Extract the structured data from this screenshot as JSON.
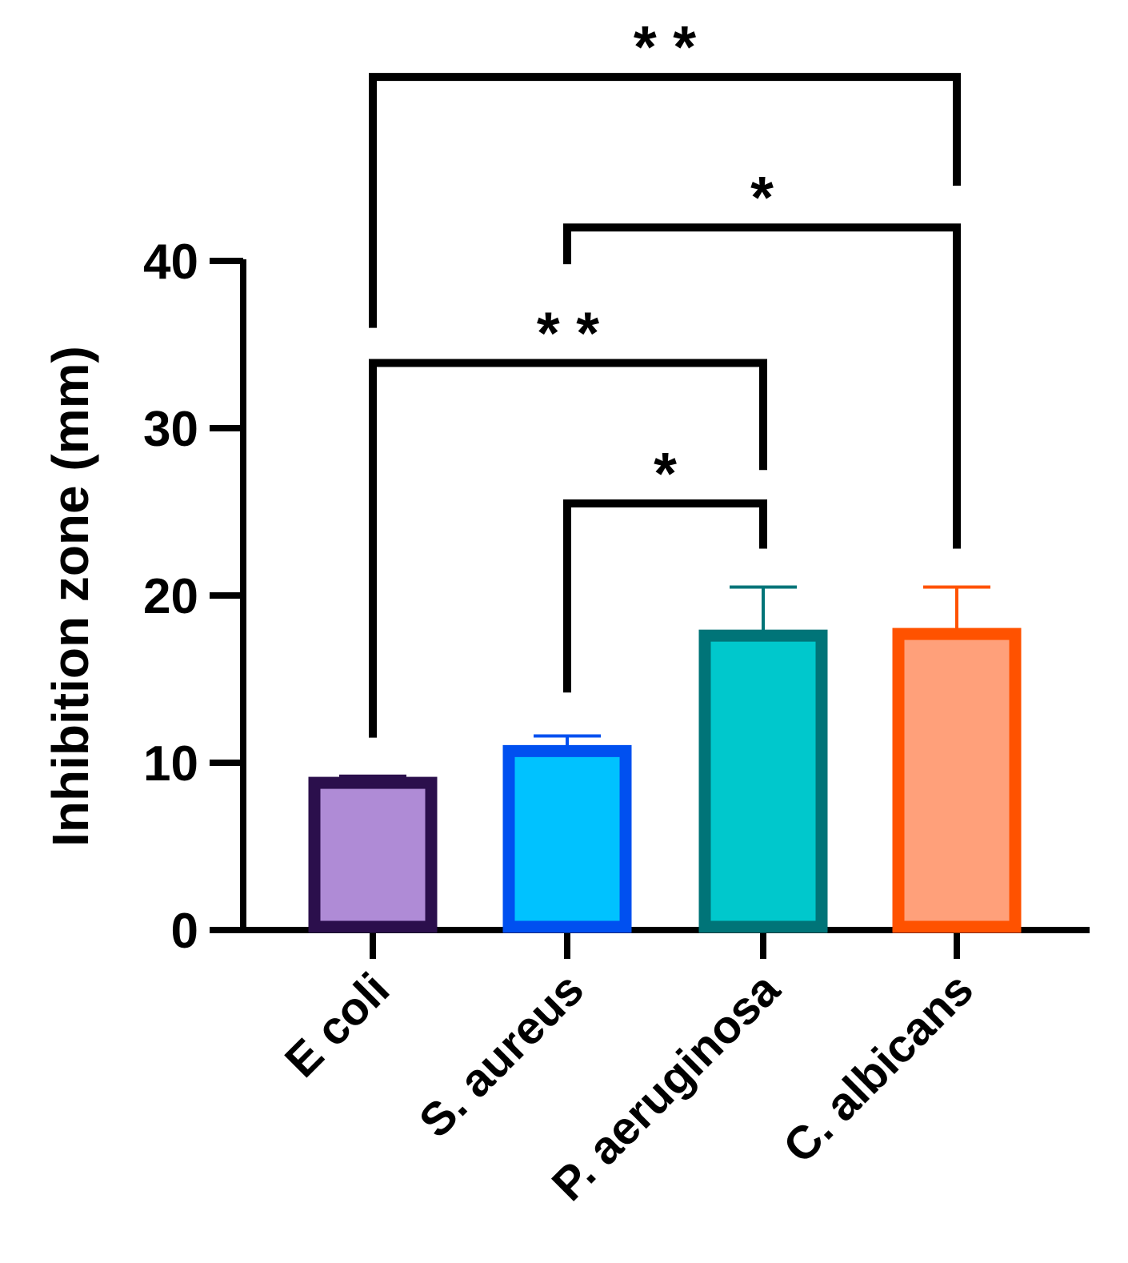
{
  "chart_data": {
    "type": "bar",
    "title": "",
    "xlabel": "",
    "ylabel": "Inhibition zone (mm)",
    "ylim": [
      0,
      40
    ],
    "yticks": [
      0,
      10,
      20,
      30,
      40
    ],
    "grid": false,
    "legend": "none",
    "categories": [
      "E coli",
      "S. aureus",
      "P. aeruginosa",
      "C. albicans"
    ],
    "values": [
      8.8,
      10.7,
      17.6,
      17.7
    ],
    "errors": [
      0.4,
      0.9,
      2.9,
      2.8
    ],
    "fill_colors": [
      "#AF8BD6",
      "#00C2FF",
      "#00C8CC",
      "#FFA07A"
    ],
    "edge_colors": [
      "#2B0F4C",
      "#0050F0",
      "#007478",
      "#FF5200"
    ],
    "significance": [
      {
        "from": 0,
        "to": 3,
        "label": "* *",
        "bracket_y": 51.0,
        "left_drop_to": 36.0,
        "right_drop_to": 44.5
      },
      {
        "from": 1,
        "to": 3,
        "label": "*",
        "bracket_y": 42.0,
        "left_drop_to": 39.8,
        "right_drop_to": 22.8
      },
      {
        "from": 0,
        "to": 2,
        "label": "* *",
        "bracket_y": 33.9,
        "left_drop_to": 11.5,
        "right_drop_to": 27.5
      },
      {
        "from": 1,
        "to": 2,
        "label": "*",
        "bracket_y": 25.5,
        "left_drop_to": 14.2,
        "right_drop_to": 22.8
      }
    ]
  }
}
